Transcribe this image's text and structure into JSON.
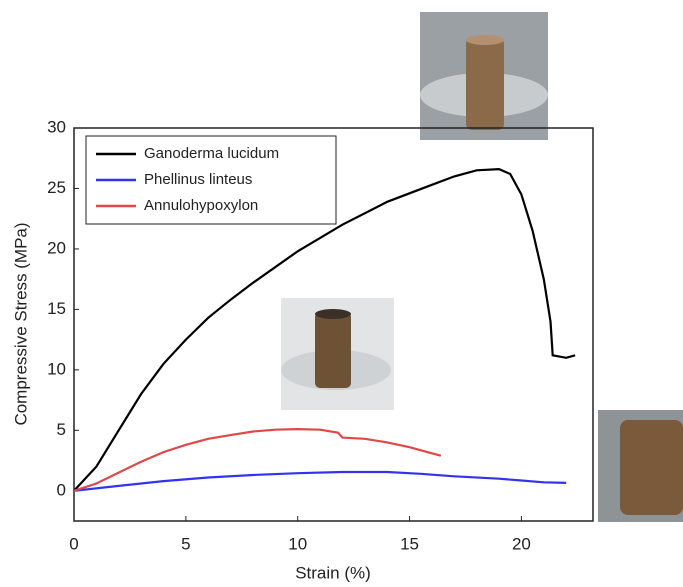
{
  "chart_data": {
    "type": "line",
    "x_label": "Strain (%)",
    "y_label": "Compressive Stress (MPa)",
    "xlim": [
      0,
      23.2
    ],
    "ylim": [
      -2.5,
      30
    ],
    "xticks": [
      0,
      5,
      10,
      15,
      20
    ],
    "yticks": [
      0,
      5,
      10,
      15,
      20,
      25,
      30
    ],
    "grid": false,
    "legend": "upper left",
    "series": [
      {
        "name": "Ganoderma lucidum",
        "color": "#000000",
        "x": [
          0,
          1,
          2,
          3,
          4,
          5,
          6,
          7,
          8,
          10,
          12,
          14,
          16,
          17,
          18,
          19,
          19.5,
          20,
          20.5,
          21,
          21.3,
          21.4,
          22,
          22.4
        ],
        "values": [
          0,
          2,
          5,
          8,
          10.5,
          12.5,
          14.3,
          15.8,
          17.2,
          19.8,
          22,
          23.9,
          25.3,
          26,
          26.5,
          26.6,
          26.2,
          24.5,
          21.5,
          17.5,
          14,
          11.2,
          11,
          11.2
        ]
      },
      {
        "name": "Phellinus linteus",
        "color": "#3333ee",
        "x": [
          0,
          2,
          4,
          6,
          8,
          10,
          12,
          14,
          15.5,
          17,
          19,
          20,
          21,
          22
        ],
        "values": [
          0,
          0.4,
          0.8,
          1.1,
          1.3,
          1.45,
          1.55,
          1.55,
          1.4,
          1.2,
          1.0,
          0.85,
          0.7,
          0.65
        ]
      },
      {
        "name": "Annulohypoxylon",
        "color": "#e04848",
        "x": [
          0,
          1,
          2,
          3,
          4,
          5,
          6,
          7,
          8,
          9,
          10,
          11,
          11.8,
          12,
          13,
          14,
          15,
          16,
          16.4
        ],
        "values": [
          0,
          0.6,
          1.5,
          2.4,
          3.2,
          3.8,
          4.3,
          4.6,
          4.9,
          5.05,
          5.1,
          5.05,
          4.8,
          4.4,
          4.3,
          4.0,
          3.6,
          3.1,
          2.9
        ]
      }
    ]
  }
}
